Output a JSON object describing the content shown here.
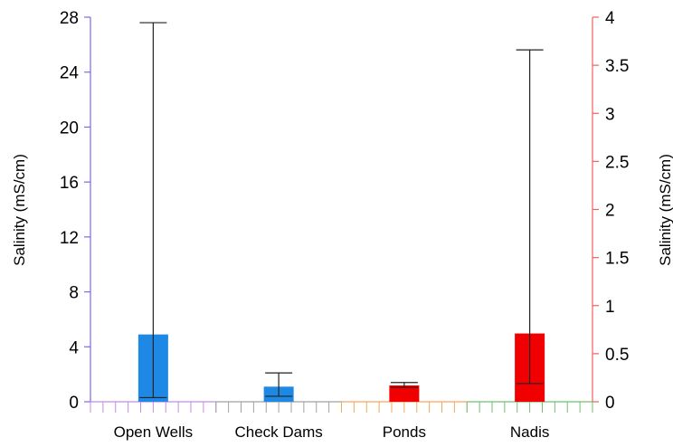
{
  "chart_data": {
    "type": "bar",
    "categories": [
      "Open Wells",
      "Check Dams",
      "Ponds",
      "Nadis"
    ],
    "y_left": {
      "label": "Salinity (mS/cm)",
      "range": [
        0,
        28
      ],
      "ticks": [
        0,
        4,
        8,
        12,
        16,
        20,
        24,
        28
      ],
      "tick_labels": [
        "0",
        "4",
        "8",
        "12",
        "16",
        "20",
        "24",
        "28"
      ]
    },
    "y_right": {
      "label": "Salinity (mS/cm)",
      "range": [
        0,
        4
      ],
      "ticks": [
        0,
        0.5,
        1,
        1.5,
        2,
        2.5,
        3,
        3.5,
        4
      ],
      "tick_labels": [
        "0",
        "0.5",
        "1",
        "1.5",
        "2",
        "2.5",
        "3",
        "3.5",
        "4"
      ]
    },
    "bars": [
      {
        "category": "Open Wells",
        "axis": "left",
        "value": 4.9,
        "err_low": 0.3,
        "err_high": 27.6,
        "color": "#1e88e5"
      },
      {
        "category": "Check Dams",
        "axis": "left",
        "value": 1.1,
        "err_low": 0.4,
        "err_high": 2.1,
        "color": "#1e88e5"
      },
      {
        "category": "Ponds",
        "axis": "right",
        "value": 0.17,
        "err_low": 0.15,
        "err_high": 0.2,
        "color": "#f00000"
      },
      {
        "category": "Nadis",
        "axis": "right",
        "value": 0.71,
        "err_low": 0.19,
        "err_high": 3.66,
        "color": "#f00000"
      }
    ],
    "axis_colors": {
      "left": "#7b68ee",
      "right": "#f06060"
    },
    "category_tick_colors": [
      "#c58be8",
      "#a0a0a0",
      "#f0a860",
      "#70c070"
    ],
    "grid": false,
    "legend": "none"
  }
}
